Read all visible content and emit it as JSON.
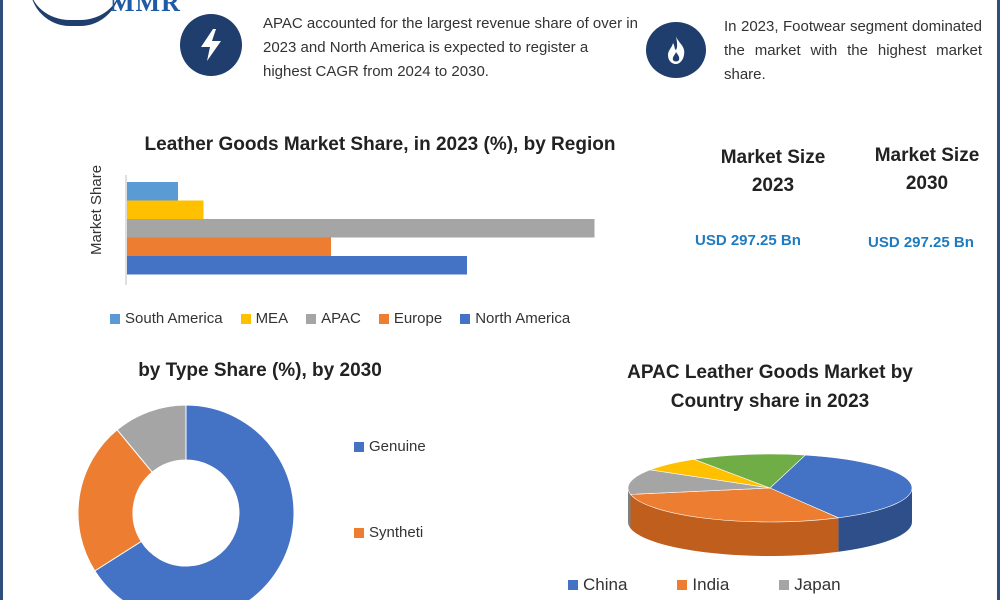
{
  "brand": {
    "logo_text": "MMR"
  },
  "insights": [
    {
      "icon": "lightning-bolt-icon",
      "text": "APAC accounted for the largest revenue share of over in 2023 and North America is expected to register a highest CAGR from 2024 to 2030."
    },
    {
      "icon": "flame-icon",
      "text": "In 2023, Footwear segment dominated the market with the highest market share."
    }
  ],
  "market_size": {
    "label_2023": "Market Size 2023",
    "value_2023": "USD 297.25 Bn",
    "label_2030": "Market Size 2030",
    "value_2030": "USD 297.25 Bn"
  },
  "colors": {
    "navy": "#1f3d6d",
    "south_america": "#5b9bd5",
    "mea": "#ffc000",
    "apac": "#a5a5a5",
    "europe": "#ed7d31",
    "north_america": "#4472c4",
    "value_blue": "#1f7bc0"
  },
  "chart_data": [
    {
      "type": "bar",
      "orientation": "horizontal",
      "title": "Leather Goods Market Share, in 2023 (%), by Region",
      "ylabel": "Market Share",
      "xlabel": "",
      "grid": false,
      "legend_position": "bottom",
      "series": [
        {
          "name": "South America",
          "value": 6
        },
        {
          "name": "MEA",
          "value": 9
        },
        {
          "name": "APAC",
          "value": 55
        },
        {
          "name": "Europe",
          "value": 24
        },
        {
          "name": "North America",
          "value": 40
        }
      ],
      "xlim": [
        0,
        60
      ]
    },
    {
      "type": "pie",
      "style": "donut",
      "title": "by Type Share (%), by 2030",
      "legend_position": "right",
      "slices": [
        {
          "name": "Genuine",
          "value": 66
        },
        {
          "name": "Syntheti",
          "value": 23
        },
        {
          "name": "",
          "value": 11
        }
      ]
    },
    {
      "type": "pie",
      "style": "3d",
      "title": "APAC  Leather Goods Market by Country share in 2023",
      "legend_position": "bottom",
      "slices": [
        {
          "name": "China",
          "value": 38
        },
        {
          "name": "India",
          "value": 30
        },
        {
          "name": "Japan",
          "value": 12
        },
        {
          "name": "",
          "value": 7
        },
        {
          "name": "",
          "value": 13
        }
      ]
    }
  ]
}
